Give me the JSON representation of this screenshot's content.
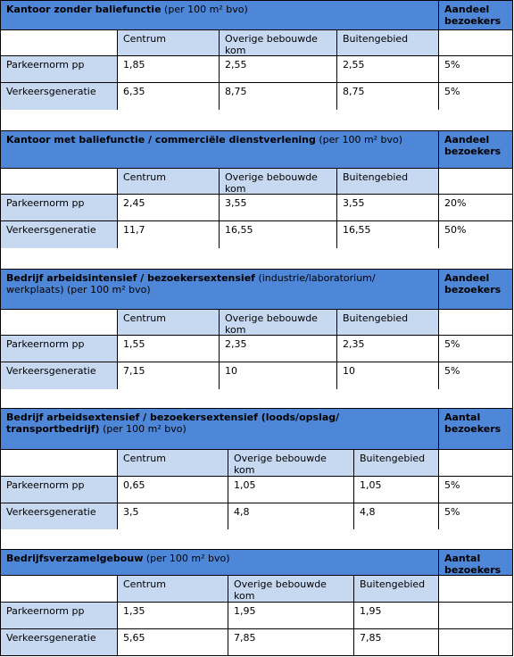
{
  "sections": [
    {
      "title_bold": "Kantoor zonder baliefunctie",
      "title_normal": " (per 100 m² bvo)",
      "share_label": "Aandeel bezoekers",
      "columns": [
        "Centrum",
        "Overige bebouwde kom",
        "Buitengebied"
      ],
      "rows": [
        {
          "label": "Parkeernorm pp",
          "values": [
            "1,85",
            "2,55",
            "2,55"
          ],
          "share": "5%"
        },
        {
          "label": "Verkeersgeneratie",
          "values": [
            "6,35",
            "8,75",
            "8,75"
          ],
          "share": "5%"
        }
      ]
    },
    {
      "title_bold": "Kantoor met baliefunctie / commerciële dienstverlening",
      "title_normal": " (per 100 m² bvo)",
      "share_label": "Aandeel bezoekers",
      "columns": [
        "Centrum",
        "Overige bebouwde kom",
        "Buitengebied"
      ],
      "rows": [
        {
          "label": "Parkeernorm pp",
          "values": [
            "2,45",
            "3,55",
            "3,55"
          ],
          "share": "20%"
        },
        {
          "label": "Verkeersgeneratie",
          "values": [
            "11,7",
            "16,55",
            "16,55"
          ],
          "share": "50%"
        }
      ]
    },
    {
      "title_bold": "Bedrijf arbeidsintensief / bezoekersextensief",
      "title_normal": " (industrie/laboratorium/ werkplaats) (per 100 m² bvo)",
      "share_label": "Aandeel bezoekers",
      "columns": [
        "Centrum",
        "Overige bebouwde kom",
        "Buitengebied"
      ],
      "rows": [
        {
          "label": "Parkeernorm pp",
          "values": [
            "1,55",
            "2,35",
            "2,35"
          ],
          "share": "5%"
        },
        {
          "label": "Verkeersgeneratie",
          "values": [
            "7,15",
            "10",
            "10"
          ],
          "share": "5%"
        }
      ]
    },
    {
      "title_bold": "Bedrijf arbeidsextensief / bezoekersextensief (loods/opslag/ transportbedrijf)",
      "title_normal": " (per 100 m² bvo)",
      "share_label": "Aantal bezoekers",
      "columns": [
        "Centrum",
        "Overige bebouwde kom",
        "Buitengebied"
      ],
      "rows": [
        {
          "label": "Parkeernorm pp",
          "values": [
            "0,65",
            "1,05",
            "1,05"
          ],
          "share": "5%"
        },
        {
          "label": "Verkeersgeneratie",
          "values": [
            "3,5",
            "4,8",
            "4,8"
          ],
          "share": "5%"
        }
      ]
    },
    {
      "title_bold": "Bedrijfsverzamelgebouw",
      "title_normal": " (per 100 m² bvo)",
      "share_label": "Aantal bezoekers",
      "columns": [
        "Centrum",
        "Overige bebouwde kom",
        "Buitengebied"
      ],
      "rows": [
        {
          "label": "Parkeernorm pp",
          "values": [
            "1,35",
            "1,95",
            "1,95"
          ],
          "share": ""
        },
        {
          "label": "Verkeersgeneratie",
          "values": [
            "5,65",
            "7,85",
            "7,85"
          ],
          "share": ""
        }
      ]
    }
  ],
  "colors": {
    "header": "#4f87d8",
    "label": "#c7d8f1"
  }
}
